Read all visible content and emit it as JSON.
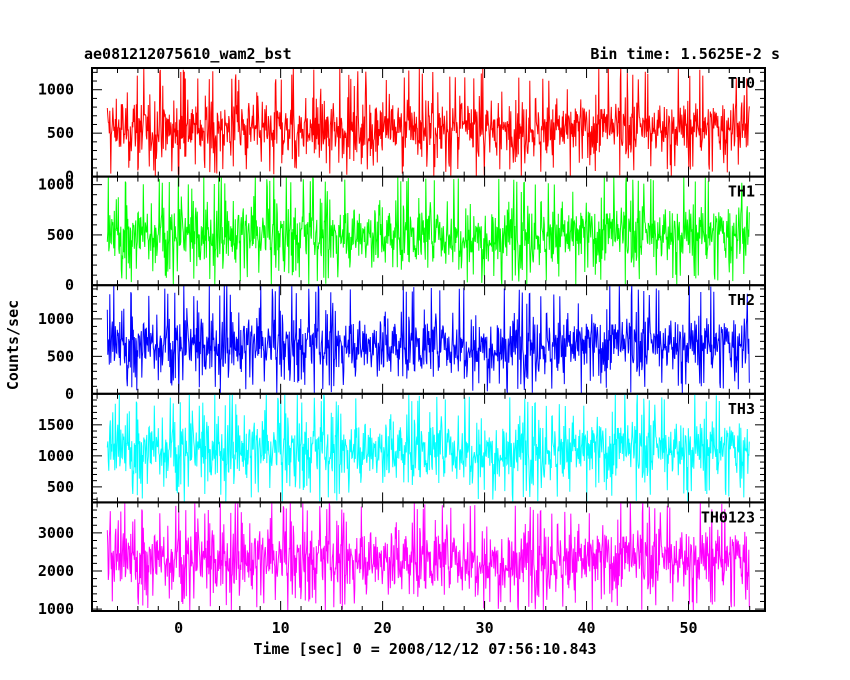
{
  "chart_data": {
    "type": "line",
    "title": "ae081212075610_wam2_bst",
    "bin_time_label": "Bin time: 1.5625E-2 s",
    "xlabel": "Time [sec] 0 = 2008/12/12 07:56:10.843",
    "ylabel": "Counts/sec",
    "xlim": [
      -8.5,
      57.5
    ],
    "x_data_range": [
      -7.0,
      56.0
    ],
    "x_ticks": [
      0,
      10,
      20,
      30,
      40,
      50
    ],
    "x_tick_labels": [
      "0",
      "10",
      "20",
      "30",
      "40",
      "50"
    ],
    "x_minor_step": 2,
    "panels": [
      {
        "name": "TH0",
        "color": "#ff0000",
        "ylim": [
          0,
          1250
        ],
        "y_ticks": [
          0,
          500,
          1000
        ],
        "y_tick_labels": [
          "0",
          "500",
          "1000"
        ],
        "y_minor_step": 100,
        "mean": 550,
        "sd": 180,
        "typical_low": 120,
        "typical_high": 1100
      },
      {
        "name": "TH1",
        "color": "#00ff00",
        "ylim": [
          0,
          1080
        ],
        "y_ticks": [
          0,
          500,
          1000
        ],
        "y_tick_labels": [
          "0",
          "500",
          "1000"
        ],
        "y_minor_step": 100,
        "mean": 500,
        "sd": 170,
        "typical_low": 100,
        "typical_high": 1000
      },
      {
        "name": "TH2",
        "color": "#0000ff",
        "ylim": [
          0,
          1450
        ],
        "y_ticks": [
          0,
          500,
          1000
        ],
        "y_tick_labels": [
          "0",
          "500",
          "1000"
        ],
        "y_minor_step": 100,
        "mean": 650,
        "sd": 220,
        "typical_low": 150,
        "typical_high": 1300
      },
      {
        "name": "TH3",
        "color": "#00ffff",
        "ylim": [
          250,
          2000
        ],
        "y_ticks": [
          500,
          1000,
          1500
        ],
        "y_tick_labels": [
          "500",
          "1000",
          "1500"
        ],
        "y_minor_step": 100,
        "mean": 1100,
        "sd": 280,
        "typical_low": 450,
        "typical_high": 1800
      },
      {
        "name": "TH0123",
        "color": "#ff00ff",
        "ylim": [
          950,
          3800
        ],
        "y_ticks": [
          1000,
          2000,
          3000
        ],
        "y_tick_labels": [
          "1000",
          "2000",
          "3000"
        ],
        "y_minor_step": 200,
        "mean": 2300,
        "sd": 480,
        "typical_low": 1200,
        "typical_high": 3500
      }
    ]
  }
}
